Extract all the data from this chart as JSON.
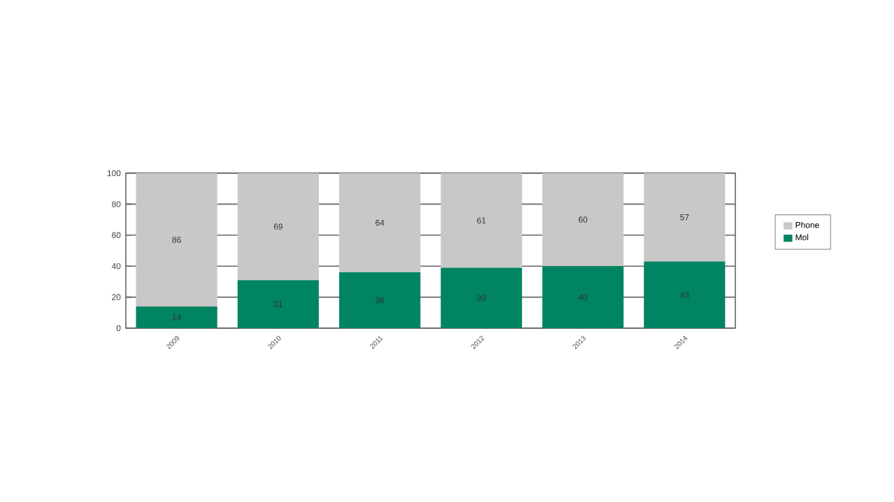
{
  "chart_data": {
    "type": "bar",
    "stacked": true,
    "categories": [
      "2009",
      "2010",
      "2011",
      "2012",
      "2013",
      "2014"
    ],
    "series": [
      {
        "name": "Mol",
        "color": "#008462",
        "values": [
          14,
          31,
          36,
          39,
          40,
          43
        ]
      },
      {
        "name": "Phone",
        "color": "#c8c8c8",
        "values": [
          86,
          69,
          64,
          61,
          60,
          57
        ]
      }
    ],
    "ylim": [
      0,
      100
    ],
    "yticks": [
      0,
      20,
      40,
      60,
      80,
      100
    ],
    "grid": "y",
    "legend": "right",
    "data_labels": true
  }
}
